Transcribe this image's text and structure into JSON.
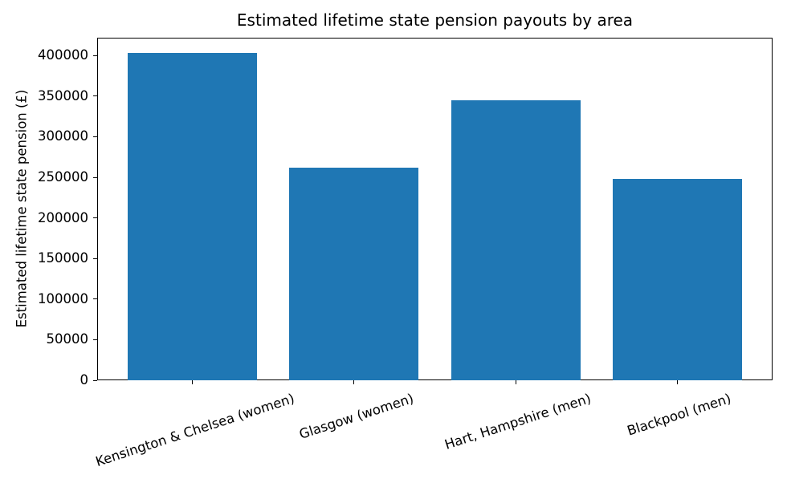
{
  "figure": {
    "title": "Estimated lifetime state pension payouts by area"
  },
  "chart_data": {
    "type": "bar",
    "title": "Estimated lifetime state pension payouts by area",
    "categories": [
      "Kensington & Chelsea (women)",
      "Glasgow (women)",
      "Hart, Hampshire (men)",
      "Blackpool (men)"
    ],
    "values": [
      403000,
      262000,
      345000,
      248000
    ],
    "xlabel": "",
    "ylabel": "Estimated lifetime state pension (£)",
    "ylim": [
      0,
      422000
    ],
    "yticks": [
      0,
      50000,
      100000,
      150000,
      200000,
      250000,
      300000,
      350000,
      400000
    ],
    "bar_color": "#1f77b4",
    "grid": false,
    "legend_position": "none",
    "x_tick_rotation_deg": 18
  }
}
